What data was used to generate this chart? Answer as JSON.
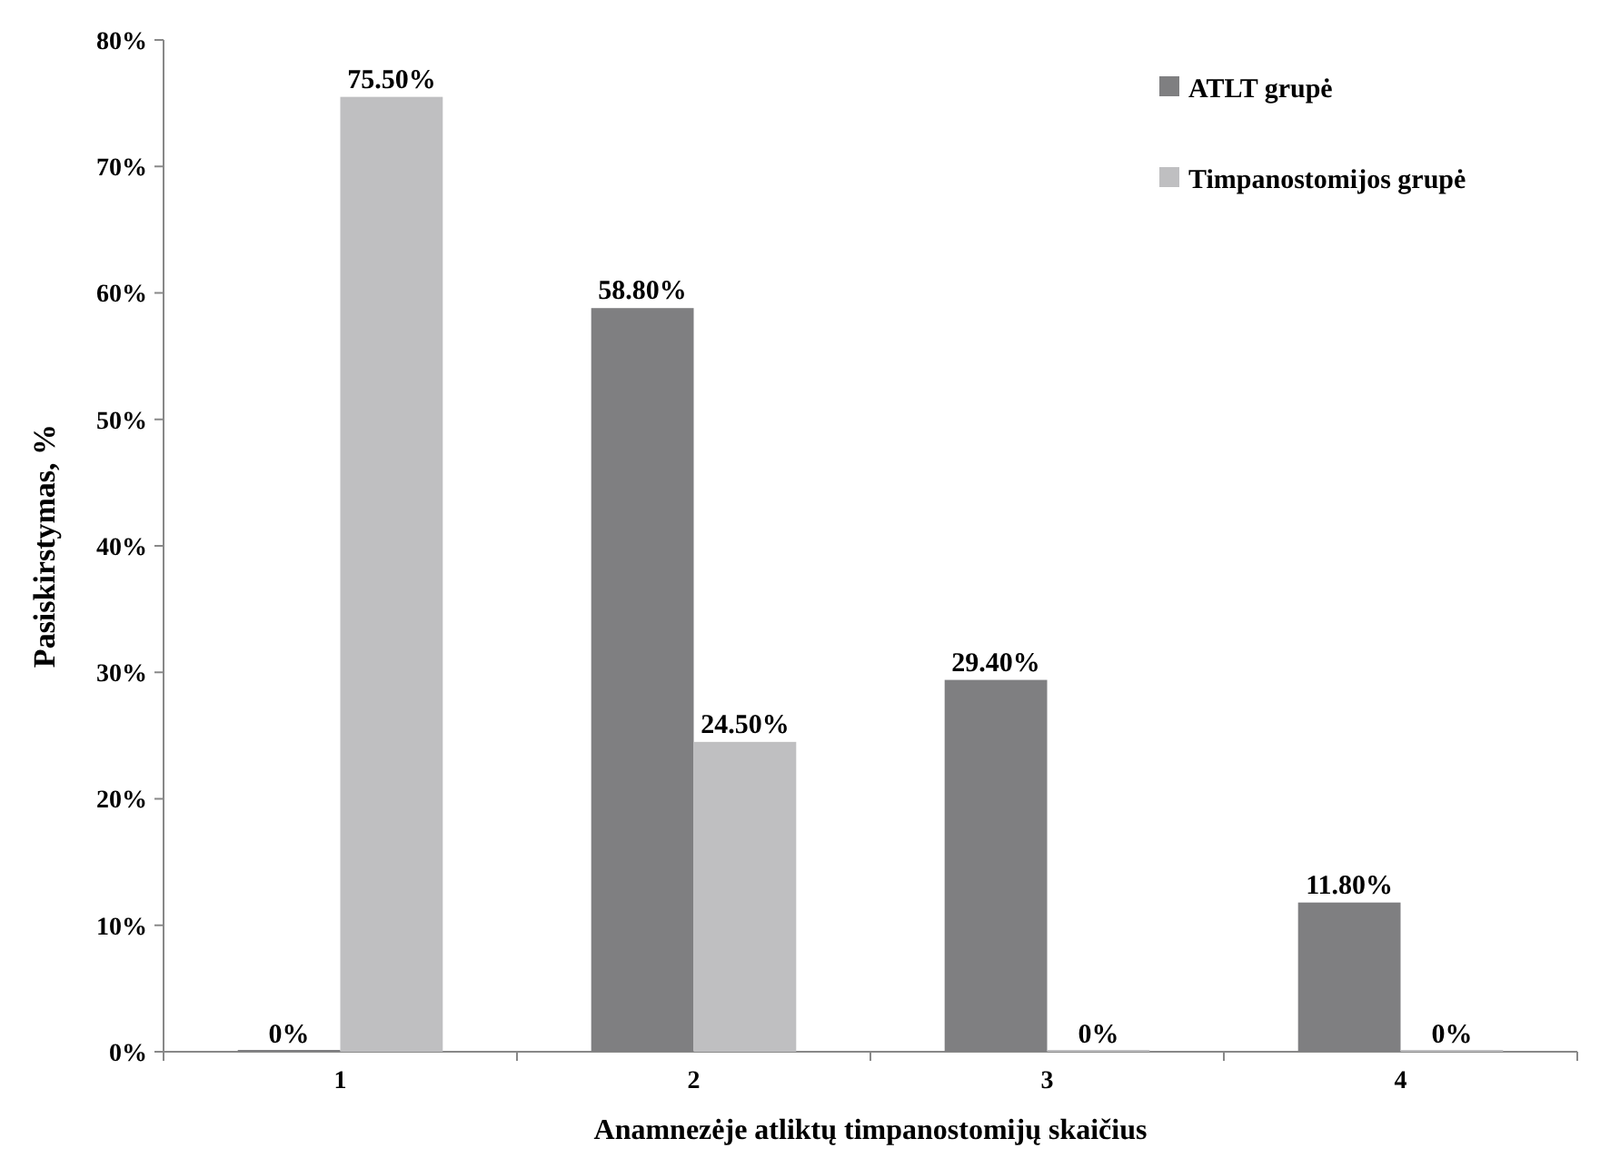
{
  "chart_data": {
    "type": "bar",
    "xlabel": "Anamnezėje atliktų timpanostomijų skaičius",
    "ylabel": "Pasiskirstymas, %",
    "categories": [
      "1",
      "2",
      "3",
      "4"
    ],
    "series": [
      {
        "name": "ATLT grupė",
        "color": "#7f7f81",
        "values": [
          0,
          58.8,
          29.4,
          11.8
        ],
        "value_labels": [
          "0%",
          "58.80%",
          "29.40%",
          "11.80%"
        ]
      },
      {
        "name": "Timpanostomijos grupė",
        "color": "#bfbfc1",
        "values": [
          75.5,
          24.5,
          0,
          0
        ],
        "value_labels": [
          "75.50%",
          "24.50%",
          "0%",
          "0%"
        ]
      }
    ],
    "ylim": [
      0,
      80
    ],
    "yticks": [
      {
        "value": 0,
        "label": "0%"
      },
      {
        "value": 10,
        "label": "10%"
      },
      {
        "value": 20,
        "label": "20%"
      },
      {
        "value": 30,
        "label": "30%"
      },
      {
        "value": 40,
        "label": "40%"
      },
      {
        "value": 50,
        "label": "50%"
      },
      {
        "value": 60,
        "label": "60%"
      },
      {
        "value": 70,
        "label": "70%"
      },
      {
        "value": 80,
        "label": "80%"
      }
    ],
    "grid": false,
    "legend": "top right"
  }
}
